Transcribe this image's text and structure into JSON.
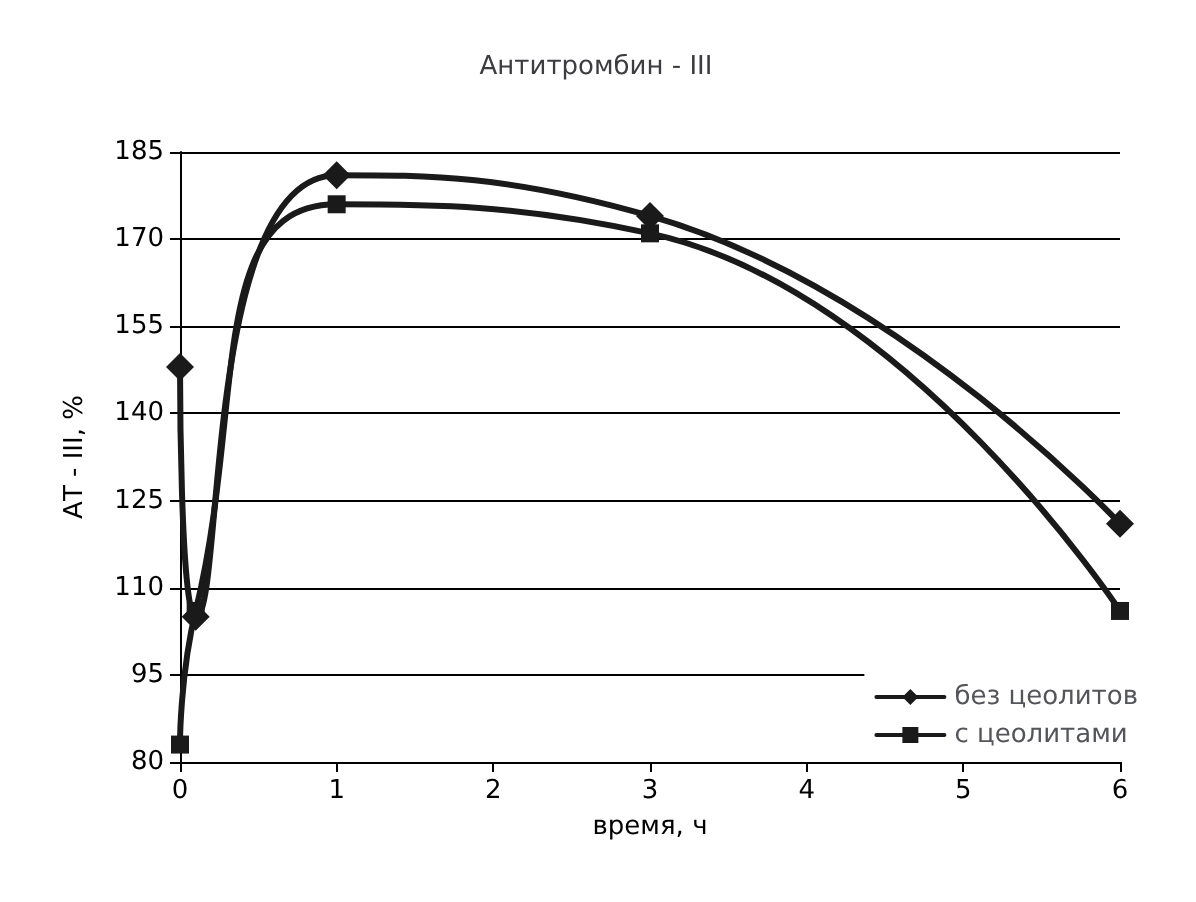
{
  "chart_data": {
    "type": "line",
    "title": "Антитромбин - III",
    "xlabel": "время, ч",
    "ylabel": "АТ - III, %",
    "x": [
      0,
      0.1,
      1,
      3,
      6
    ],
    "series": [
      {
        "name": "без цеолитов",
        "color": "#1a1a1a",
        "marker": "diamond",
        "values": [
          148,
          105,
          181,
          174,
          121
        ]
      },
      {
        "name": "с цеолитами",
        "color": "#1a1a1a",
        "marker": "square",
        "values": [
          83,
          106,
          176,
          171,
          106
        ]
      }
    ],
    "xlim": [
      0,
      6
    ],
    "xticks": [
      0,
      1,
      2,
      3,
      4,
      5,
      6
    ],
    "ylim": [
      80,
      185
    ],
    "yticks": [
      80,
      95,
      110,
      125,
      140,
      155,
      170,
      185
    ],
    "grid": "y",
    "legend": "bottom right",
    "line_style": "solid"
  }
}
